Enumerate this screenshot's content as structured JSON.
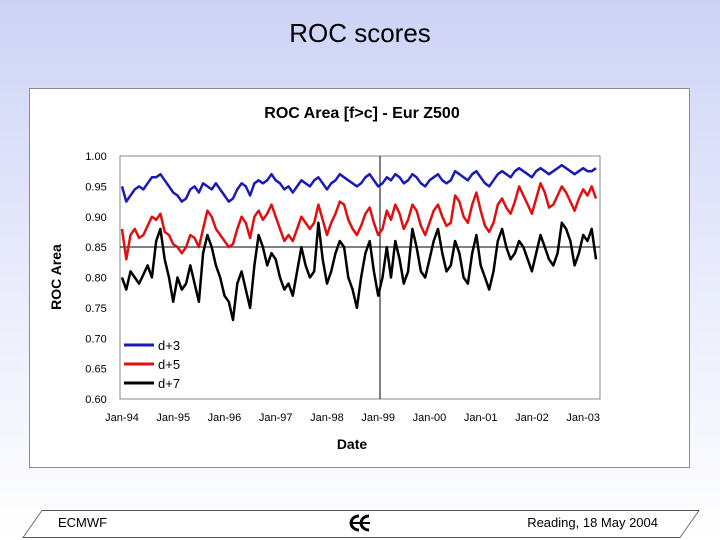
{
  "slide": {
    "title": "ROC scores",
    "footer_left": "ECMWF",
    "footer_right": "Reading, 18 May 2004",
    "logo_icon": "ecmwf-logo-icon"
  },
  "chart_data": {
    "type": "line",
    "title": "ROC Area [f>c] - Eur Z500",
    "xlabel": "Date",
    "ylabel": "ROC Area",
    "ylim": [
      0.6,
      1.0
    ],
    "yticks": [
      "1.00",
      "0.95",
      "0.90",
      "0.85",
      "0.80",
      "0.75",
      "0.70",
      "0.65",
      "0.60"
    ],
    "xtick_labels": [
      "Jan-94",
      "Jan-95",
      "Jan-96",
      "Jan-97",
      "Jan-98",
      "Jan-99",
      "Jan-00",
      "Jan-01",
      "Jan-02",
      "Jan-03"
    ],
    "grid": "single-gridline-at-0.85-and-Jan-99",
    "legend_placement": "bottom-left",
    "x_start": "Jan-94",
    "x_step": "1 month",
    "series": [
      {
        "name": "d+3",
        "color": "#1a1ab4",
        "values": [
          0.95,
          0.925,
          0.935,
          0.945,
          0.95,
          0.945,
          0.955,
          0.965,
          0.965,
          0.97,
          0.96,
          0.95,
          0.94,
          0.935,
          0.925,
          0.93,
          0.945,
          0.95,
          0.94,
          0.955,
          0.95,
          0.945,
          0.955,
          0.945,
          0.935,
          0.925,
          0.93,
          0.945,
          0.955,
          0.95,
          0.935,
          0.955,
          0.96,
          0.955,
          0.96,
          0.97,
          0.96,
          0.955,
          0.945,
          0.95,
          0.94,
          0.95,
          0.96,
          0.955,
          0.95,
          0.96,
          0.965,
          0.955,
          0.945,
          0.955,
          0.96,
          0.97,
          0.965,
          0.96,
          0.955,
          0.95,
          0.955,
          0.965,
          0.97,
          0.96,
          0.95,
          0.955,
          0.965,
          0.96,
          0.97,
          0.965,
          0.955,
          0.96,
          0.97,
          0.965,
          0.955,
          0.95,
          0.96,
          0.965,
          0.97,
          0.96,
          0.955,
          0.96,
          0.975,
          0.97,
          0.965,
          0.96,
          0.97,
          0.975,
          0.965,
          0.955,
          0.95,
          0.96,
          0.97,
          0.975,
          0.97,
          0.965,
          0.975,
          0.98,
          0.975,
          0.97,
          0.965,
          0.975,
          0.98,
          0.975,
          0.97,
          0.975,
          0.98,
          0.985,
          0.98,
          0.975,
          0.97,
          0.975,
          0.98,
          0.975,
          0.975,
          0.98
        ]
      },
      {
        "name": "d+5",
        "color": "#e01010",
        "values": [
          0.88,
          0.83,
          0.87,
          0.88,
          0.865,
          0.87,
          0.885,
          0.9,
          0.895,
          0.905,
          0.875,
          0.87,
          0.855,
          0.85,
          0.84,
          0.85,
          0.87,
          0.865,
          0.85,
          0.88,
          0.91,
          0.9,
          0.88,
          0.87,
          0.86,
          0.85,
          0.855,
          0.88,
          0.9,
          0.89,
          0.865,
          0.9,
          0.91,
          0.895,
          0.905,
          0.92,
          0.9,
          0.88,
          0.86,
          0.87,
          0.86,
          0.88,
          0.9,
          0.89,
          0.88,
          0.89,
          0.92,
          0.895,
          0.87,
          0.89,
          0.905,
          0.925,
          0.92,
          0.895,
          0.88,
          0.87,
          0.885,
          0.905,
          0.915,
          0.89,
          0.87,
          0.88,
          0.91,
          0.895,
          0.92,
          0.905,
          0.88,
          0.895,
          0.92,
          0.91,
          0.885,
          0.87,
          0.89,
          0.91,
          0.92,
          0.9,
          0.885,
          0.89,
          0.935,
          0.925,
          0.9,
          0.89,
          0.92,
          0.94,
          0.91,
          0.885,
          0.875,
          0.89,
          0.92,
          0.93,
          0.915,
          0.905,
          0.925,
          0.95,
          0.935,
          0.92,
          0.905,
          0.93,
          0.955,
          0.94,
          0.915,
          0.92,
          0.935,
          0.95,
          0.94,
          0.925,
          0.91,
          0.93,
          0.945,
          0.935,
          0.95,
          0.93
        ]
      },
      {
        "name": "d+7",
        "color": "#000000",
        "values": [
          0.8,
          0.78,
          0.81,
          0.8,
          0.79,
          0.805,
          0.82,
          0.8,
          0.86,
          0.88,
          0.83,
          0.8,
          0.76,
          0.8,
          0.78,
          0.79,
          0.82,
          0.79,
          0.76,
          0.84,
          0.87,
          0.85,
          0.82,
          0.8,
          0.77,
          0.76,
          0.73,
          0.79,
          0.81,
          0.78,
          0.75,
          0.82,
          0.87,
          0.85,
          0.82,
          0.84,
          0.83,
          0.8,
          0.78,
          0.79,
          0.77,
          0.81,
          0.85,
          0.82,
          0.8,
          0.81,
          0.89,
          0.83,
          0.79,
          0.81,
          0.84,
          0.86,
          0.85,
          0.8,
          0.78,
          0.75,
          0.8,
          0.84,
          0.86,
          0.81,
          0.77,
          0.8,
          0.85,
          0.8,
          0.86,
          0.83,
          0.79,
          0.81,
          0.88,
          0.85,
          0.81,
          0.8,
          0.83,
          0.86,
          0.88,
          0.84,
          0.81,
          0.82,
          0.86,
          0.84,
          0.8,
          0.79,
          0.84,
          0.87,
          0.82,
          0.8,
          0.78,
          0.81,
          0.86,
          0.88,
          0.85,
          0.83,
          0.84,
          0.86,
          0.85,
          0.83,
          0.81,
          0.84,
          0.87,
          0.85,
          0.83,
          0.82,
          0.84,
          0.89,
          0.88,
          0.86,
          0.82,
          0.84,
          0.87,
          0.86,
          0.88,
          0.83
        ]
      }
    ]
  }
}
